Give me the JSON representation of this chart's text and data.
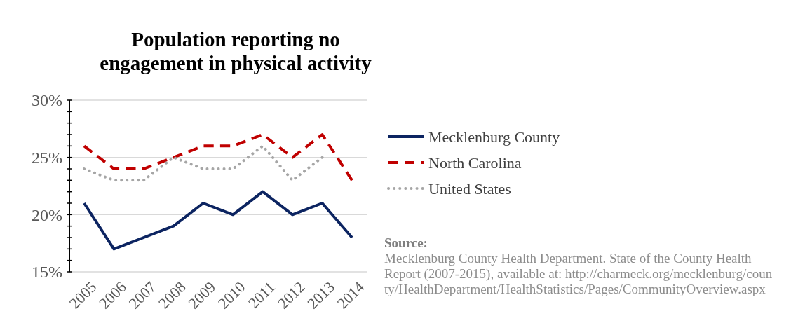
{
  "chart_data": {
    "type": "line",
    "title": "Population reporting no engagement in physical activity",
    "categories": [
      "2005",
      "2006",
      "2007",
      "2008",
      "2009",
      "2010",
      "2011",
      "2012",
      "2013",
      "2014"
    ],
    "series": [
      {
        "name": "Mecklenburg County",
        "color": "#0c2461",
        "line_style": "solid",
        "values": [
          21,
          17,
          18,
          19,
          21,
          20,
          22,
          20,
          21,
          18
        ]
      },
      {
        "name": "North Carolina",
        "color": "#c00000",
        "line_style": "dashed",
        "values": [
          26,
          24,
          24,
          25,
          26,
          26,
          27,
          25,
          27,
          23
        ]
      },
      {
        "name": "United States",
        "color": "#a6a6a6",
        "line_style": "dotted",
        "values": [
          24,
          23,
          23,
          25,
          24,
          24,
          26,
          23,
          25,
          null
        ]
      }
    ],
    "ylim": [
      15,
      30
    ],
    "yticks": [
      {
        "value": 15,
        "label": "15%"
      },
      {
        "value": 16,
        "label": null
      },
      {
        "value": 17,
        "label": null
      },
      {
        "value": 18,
        "label": null
      },
      {
        "value": 19,
        "label": null
      },
      {
        "value": 20,
        "label": "20%"
      },
      {
        "value": 21,
        "label": null
      },
      {
        "value": 22,
        "label": null
      },
      {
        "value": 23,
        "label": null
      },
      {
        "value": 24,
        "label": null
      },
      {
        "value": 25,
        "label": "25%"
      },
      {
        "value": 26,
        "label": null
      },
      {
        "value": 27,
        "label": null
      },
      {
        "value": 28,
        "label": null
      },
      {
        "value": 29,
        "label": null
      },
      {
        "value": 30,
        "label": "30%"
      }
    ],
    "grid": "y",
    "legend": "right",
    "marker": "none",
    "annotations": [
      "Source:",
      "Mecklenburg County Health Department. State of the County Health Report (2007-2015), available at: http://charmeck.org/mecklenburg/county/HealthDepartment/HealthStatistics/Pages/CommunityOverview.aspx"
    ]
  }
}
